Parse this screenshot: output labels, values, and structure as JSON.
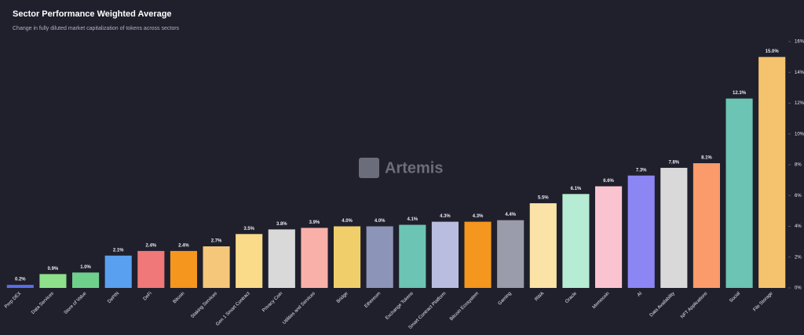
{
  "chart_data": {
    "type": "bar",
    "title": "Sector Performance Weighted Average",
    "subtitle": "Change in fully diluted market capitalization of tokens across sectors",
    "watermark": "Artemis",
    "categories": [
      "Perp DEX",
      "Data Services",
      "Store of Value",
      "DePIN",
      "DeFi",
      "Bitcoin",
      "Staking Services",
      "Gen 1 Smart Contract",
      "Privacy Coin",
      "Utilities and Services",
      "Bridge",
      "Ethereum",
      "Exchange Tokens",
      "Smart Contract Platform",
      "Bitcoin Ecosystem",
      "Gaming",
      "RWA",
      "Oracle",
      "Memecoin",
      "AI",
      "Data Availability",
      "NFT Applications",
      "Social",
      "File Storage"
    ],
    "values": [
      0.2,
      0.9,
      1.0,
      2.1,
      2.4,
      2.4,
      2.7,
      3.5,
      3.8,
      3.9,
      4.0,
      4.0,
      4.1,
      4.3,
      4.3,
      4.4,
      5.5,
      6.1,
      6.6,
      7.3,
      7.8,
      8.1,
      12.3,
      15.0
    ],
    "value_labels": [
      "0.2%",
      "0.9%",
      "1.0%",
      "2.1%",
      "2.4%",
      "2.4%",
      "2.7%",
      "3.5%",
      "3.8%",
      "3.9%",
      "4.0%",
      "4.0%",
      "4.1%",
      "4.3%",
      "4.3%",
      "4.4%",
      "5.5%",
      "6.1%",
      "6.6%",
      "7.3%",
      "7.8%",
      "8.1%",
      "12.3%",
      "15.0%"
    ],
    "colors": [
      "#5b6ee8",
      "#8ee08a",
      "#6fd08c",
      "#5aa0f0",
      "#f07878",
      "#f5961e",
      "#f5c77a",
      "#fadb8a",
      "#d9d9d9",
      "#f9b0a8",
      "#f0cf6a",
      "#8c95b8",
      "#6cc4b4",
      "#b9bde0",
      "#f5961e",
      "#9a9cab",
      "#fbe2a6",
      "#b5ecd3",
      "#f9c4d0",
      "#8c86f5",
      "#d9d9d9",
      "#fb9a6a",
      "#6cc4b4",
      "#f5c26e"
    ],
    "ylim": [
      0,
      16
    ],
    "yticks": [
      {
        "value": 0,
        "label": "0%"
      },
      {
        "value": 2,
        "label": "2%"
      },
      {
        "value": 4,
        "label": "4%"
      },
      {
        "value": 6,
        "label": "6%"
      },
      {
        "value": 8,
        "label": "8%"
      },
      {
        "value": 10,
        "label": "10%"
      },
      {
        "value": 12,
        "label": "12%"
      },
      {
        "value": 14,
        "label": "14%"
      },
      {
        "value": 16,
        "label": "16%"
      }
    ],
    "y_axis_side": "right",
    "grid": false
  }
}
